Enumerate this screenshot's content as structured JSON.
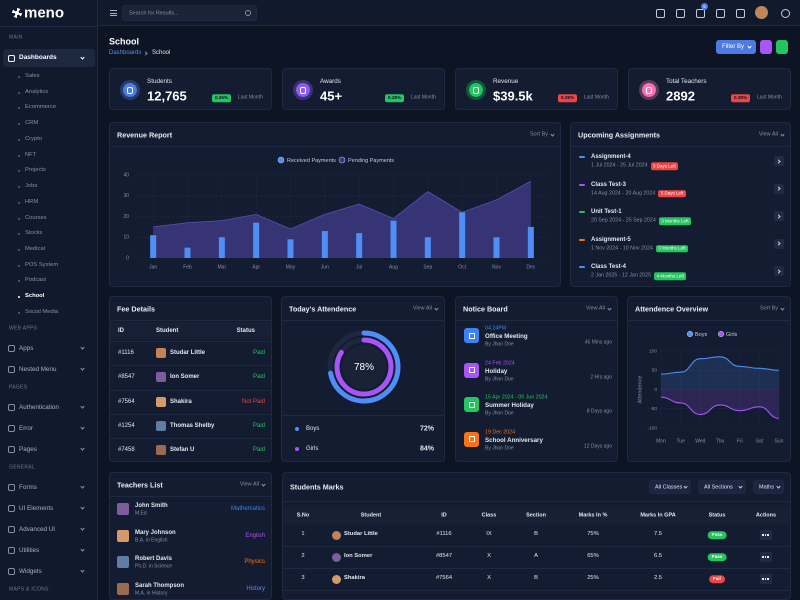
{
  "sidebar": {
    "logo": "meno",
    "groups": [
      {
        "title": "MAIN",
        "items": [
          {
            "label": "Dashboards",
            "children": [
              "Sales",
              "Analytics",
              "Ecommerce",
              "CRM",
              "Crypto",
              "NFT",
              "Projects",
              "Jobs",
              "HRM",
              "Courses",
              "Stocks",
              "Medical",
              "POS System",
              "Podcast",
              "School",
              "Social Media"
            ]
          }
        ]
      },
      {
        "title": "WEB APPS",
        "items": [
          {
            "label": "Apps"
          },
          {
            "label": "Nested Menu"
          }
        ]
      },
      {
        "title": "PAGES",
        "items": [
          {
            "label": "Authentication"
          },
          {
            "label": "Error"
          },
          {
            "label": "Pages"
          }
        ]
      },
      {
        "title": "GENERAL",
        "items": [
          {
            "label": "Forms"
          },
          {
            "label": "UI Elements"
          },
          {
            "label": "Advanced UI"
          },
          {
            "label": "Utilities"
          },
          {
            "label": "Widgets"
          }
        ]
      },
      {
        "title": "MAPS & ICONS",
        "items": []
      }
    ]
  },
  "header": {
    "search_placeholder": "Search for Results...",
    "cart_badge": "5"
  },
  "page": {
    "title": "School",
    "breadcrumb": [
      "Dashboards",
      "School"
    ],
    "filter_button": "Filter By"
  },
  "stats": [
    {
      "label": "Students",
      "value": "12,765",
      "change": "0.26%",
      "trend": "up",
      "period": "Last Month",
      "color": "#4f7be0"
    },
    {
      "label": "Awards",
      "value": "45+",
      "change": "0.28%",
      "trend": "up",
      "period": "Last Month",
      "color": "#8b5cf6"
    },
    {
      "label": "Revenue",
      "value": "$39.5k",
      "change": "0.28%",
      "trend": "down",
      "period": "Last Month",
      "color": "#22c55e"
    },
    {
      "label": "Total Teachers",
      "value": "2892",
      "change": "0.28%",
      "trend": "down",
      "period": "Last Month",
      "color": "#f472b6"
    }
  ],
  "revenue_report": {
    "type": "bar",
    "title": "Revenue Report",
    "sort": "Sort By",
    "categories": [
      "Jan",
      "Feb",
      "Mar",
      "Apr",
      "May",
      "Jun",
      "Jul",
      "Aug",
      "Sep",
      "Oct",
      "Nov",
      "Dec"
    ],
    "series": [
      {
        "name": "Received Payments",
        "type": "bar",
        "color": "#4f8ef7",
        "values": [
          11,
          5,
          10,
          17,
          9,
          13,
          12,
          18,
          10,
          22,
          10,
          15
        ]
      },
      {
        "name": "Pending Payments",
        "type": "area",
        "color": "#3d3880",
        "values": [
          15,
          17,
          18,
          21,
          14,
          21,
          26,
          19,
          32,
          22,
          28,
          37
        ]
      }
    ],
    "ylim": [
      0,
      40
    ],
    "yticks": [
      0,
      10,
      20,
      30,
      40
    ],
    "grid": true
  },
  "assignments": {
    "title": "Upcoming Assignments",
    "view_all": "View All",
    "items": [
      {
        "name": "Assignment-4",
        "dates": "1 Jul 2024 - 25 Jul 2024",
        "badge": "3 Days Left",
        "badge_color": "#ef4444",
        "color": "#4f8ef7"
      },
      {
        "name": "Class Test-3",
        "dates": "14 Aug 2024 - 20 Aug 2024",
        "badge": "5 Days Left",
        "badge_color": "#ef4444",
        "color": "#a855f7"
      },
      {
        "name": "Unit Test-1",
        "dates": "20 Sep 2024 - 25 Sep 2024",
        "badge": "3 Months Left",
        "badge_color": "#22c55e",
        "color": "#22c55e"
      },
      {
        "name": "Assignment-5",
        "dates": "1 Nov 2024 - 10 Nov 2024",
        "badge": "3 Months Left",
        "badge_color": "#22c55e",
        "color": "#f97316"
      },
      {
        "name": "Class Test-4",
        "dates": "2 Jan 2025 - 12 Jan 2025",
        "badge": "4 Months Left",
        "badge_color": "#22c55e",
        "color": "#4f8ef7"
      }
    ]
  },
  "fee_details": {
    "title": "Fee Details",
    "columns": [
      "ID",
      "Student",
      "Status"
    ],
    "rows": [
      {
        "id": "#1116",
        "student": "Studar Little",
        "status": "Paid",
        "status_color": "#22c55e"
      },
      {
        "id": "#8547",
        "student": "Ion Somer",
        "status": "Paid",
        "status_color": "#22c55e"
      },
      {
        "id": "#7564",
        "student": "Shakira",
        "status": "Not Paid",
        "status_color": "#ef4444"
      },
      {
        "id": "#1254",
        "student": "Thomas Shelby",
        "status": "Paid",
        "status_color": "#22c55e"
      },
      {
        "id": "#7458",
        "student": "Stefan U",
        "status": "Paid",
        "status_color": "#22c55e"
      }
    ]
  },
  "attendance_today": {
    "title": "Today's Attendence",
    "view_all": "View All",
    "total": "78%",
    "groups": [
      {
        "name": "Boys",
        "value": 72,
        "label": "72%",
        "color": "#4f8ef7"
      },
      {
        "name": "Girls",
        "value": 84,
        "label": "84%",
        "color": "#a855f7"
      }
    ]
  },
  "notice_board": {
    "title": "Notice Board",
    "view_all": "View All",
    "items": [
      {
        "time": "04:24PM",
        "title": "Office Meeting",
        "by": "By Jhon Doe",
        "ago": "45 Mins ago",
        "color": "#3b82f6"
      },
      {
        "time": "24 Feb 2024",
        "title": "Holiday",
        "by": "By Jhon Doe",
        "ago": "2 Hrs ago",
        "color": "#a855f7"
      },
      {
        "time": "15 Apr 2024 - 05 Jun 2024",
        "title": "Summer Holiday",
        "by": "By Jhon Doe",
        "ago": "8 Days ago",
        "color": "#22c55e"
      },
      {
        "time": "19 Dec 2024",
        "title": "School Anniversary",
        "by": "By Jhon Doe",
        "ago": "12 Days ago",
        "color": "#f97316"
      }
    ]
  },
  "attendance_overview": {
    "type": "line",
    "title": "Attendence Overview",
    "sort": "Sort By",
    "ylabel": "Attendence",
    "categories": [
      "Mon",
      "Tue",
      "Wed",
      "Thu",
      "Fri",
      "Sat",
      "Sun"
    ],
    "series": [
      {
        "name": "Boys",
        "color": "#4f8ef7",
        "values": [
          40,
          45,
          80,
          85,
          60,
          55,
          50
        ]
      },
      {
        "name": "Girls",
        "color": "#a855f7",
        "values": [
          -20,
          -35,
          -65,
          -40,
          -55,
          -45,
          -75
        ]
      }
    ],
    "ylim": [
      -100,
      100
    ],
    "yticks": [
      -100,
      -50,
      0,
      50,
      100
    ],
    "grid": true
  },
  "teachers": {
    "title": "Teachers List",
    "view_all": "View All",
    "items": [
      {
        "name": "John Smith",
        "degree": "M.Ed",
        "subject": "Mathematics",
        "color": "#3b82f6"
      },
      {
        "name": "Mary Johnson",
        "degree": "B.A. in English",
        "subject": "English",
        "color": "#a855f7"
      },
      {
        "name": "Robert Davis",
        "degree": "Ph.D. in Science",
        "subject": "Physics",
        "color": "#f97316"
      },
      {
        "name": "Sarah Thompson",
        "degree": "M.A. in History",
        "subject": "History",
        "color": "#5b8def"
      }
    ]
  },
  "students_marks": {
    "title": "Students Marks",
    "filters": [
      "All Classes",
      "All Sections",
      "Maths"
    ],
    "columns": [
      "S.No",
      "Student",
      "ID",
      "Class",
      "Section",
      "Marks In %",
      "Marks In GPA",
      "Status",
      "Actions"
    ],
    "rows": [
      {
        "cells": [
          1,
          "Studar Little",
          "#1116",
          "IX",
          "B",
          "75%",
          7.5,
          "Pass"
        ],
        "status_color": "#22c55e"
      },
      {
        "cells": [
          2,
          "Ion Somer",
          "#8547",
          "X",
          "A",
          "65%",
          6.5,
          "Pass"
        ],
        "status_color": "#22c55e"
      },
      {
        "cells": [
          3,
          "Shakira",
          "#7564",
          "X",
          "B",
          "25%",
          2.5,
          "Fail"
        ],
        "status_color": "#ef4444"
      }
    ]
  }
}
